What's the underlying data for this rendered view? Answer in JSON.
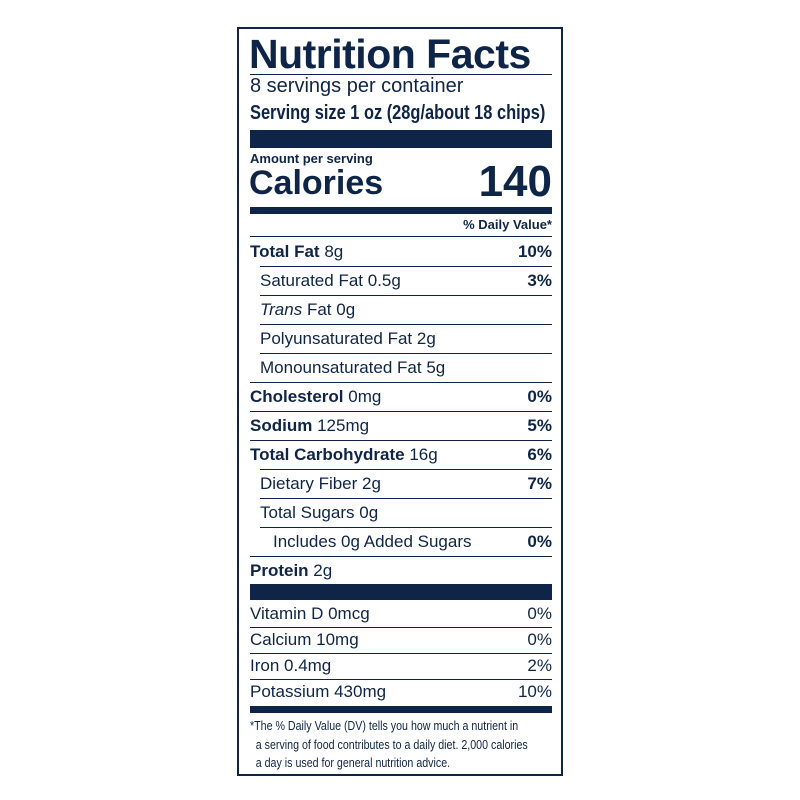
{
  "title": "Nutrition Facts",
  "servings": "8 servings per container",
  "serving_size": "Serving size 1 oz (28g/about 18 chips)",
  "amount_per_serving": "Amount per serving",
  "calories_label": "Calories",
  "calories_value": "140",
  "daily_value_header": "% Daily Value*",
  "nutrients": [
    {
      "name": "Total Fat",
      "amount": "8g",
      "dv": "10%",
      "bold": true,
      "indent": 0
    },
    {
      "name": "Saturated Fat",
      "amount": "0.5g",
      "dv": "3%",
      "bold": false,
      "indent": 1
    },
    {
      "name": "Trans",
      "name_rest": "Fat",
      "amount": "0g",
      "dv": "",
      "bold": false,
      "indent": 1,
      "italic": true
    },
    {
      "name": "Polyunsaturated Fat",
      "amount": "2g",
      "dv": "",
      "bold": false,
      "indent": 1
    },
    {
      "name": "Monounsaturated Fat",
      "amount": "5g",
      "dv": "",
      "bold": false,
      "indent": 1
    },
    {
      "name": "Cholesterol",
      "amount": "0mg",
      "dv": "0%",
      "bold": true,
      "indent": 0
    },
    {
      "name": "Sodium",
      "amount": "125mg",
      "dv": "5%",
      "bold": true,
      "indent": 0
    },
    {
      "name": "Total Carbohydrate",
      "amount": "16g",
      "dv": "6%",
      "bold": true,
      "indent": 0
    },
    {
      "name": "Dietary Fiber",
      "amount": "2g",
      "dv": "7%",
      "bold": false,
      "indent": 1
    },
    {
      "name": "Total Sugars",
      "amount": "0g",
      "dv": "",
      "bold": false,
      "indent": 1
    },
    {
      "name": "Includes 0g Added Sugars",
      "amount": "",
      "dv": "0%",
      "bold": false,
      "indent": 2
    },
    {
      "name": "Protein",
      "amount": "2g",
      "dv": "",
      "bold": true,
      "indent": 0
    }
  ],
  "vitamins": [
    {
      "name": "Vitamin D 0mcg",
      "dv": "0%"
    },
    {
      "name": "Calcium 10mg",
      "dv": "0%"
    },
    {
      "name": "Iron 0.4mg",
      "dv": "2%"
    },
    {
      "name": "Potassium 430mg",
      "dv": "10%"
    }
  ],
  "footnote": [
    "*The % Daily Value (DV) tells you how much a nutrient in",
    "a serving of food contributes to a daily diet. 2,000 calories",
    "a day is used for general nutrition advice."
  ],
  "colors": {
    "ink": "#0f2548",
    "background": "#ffffff"
  }
}
